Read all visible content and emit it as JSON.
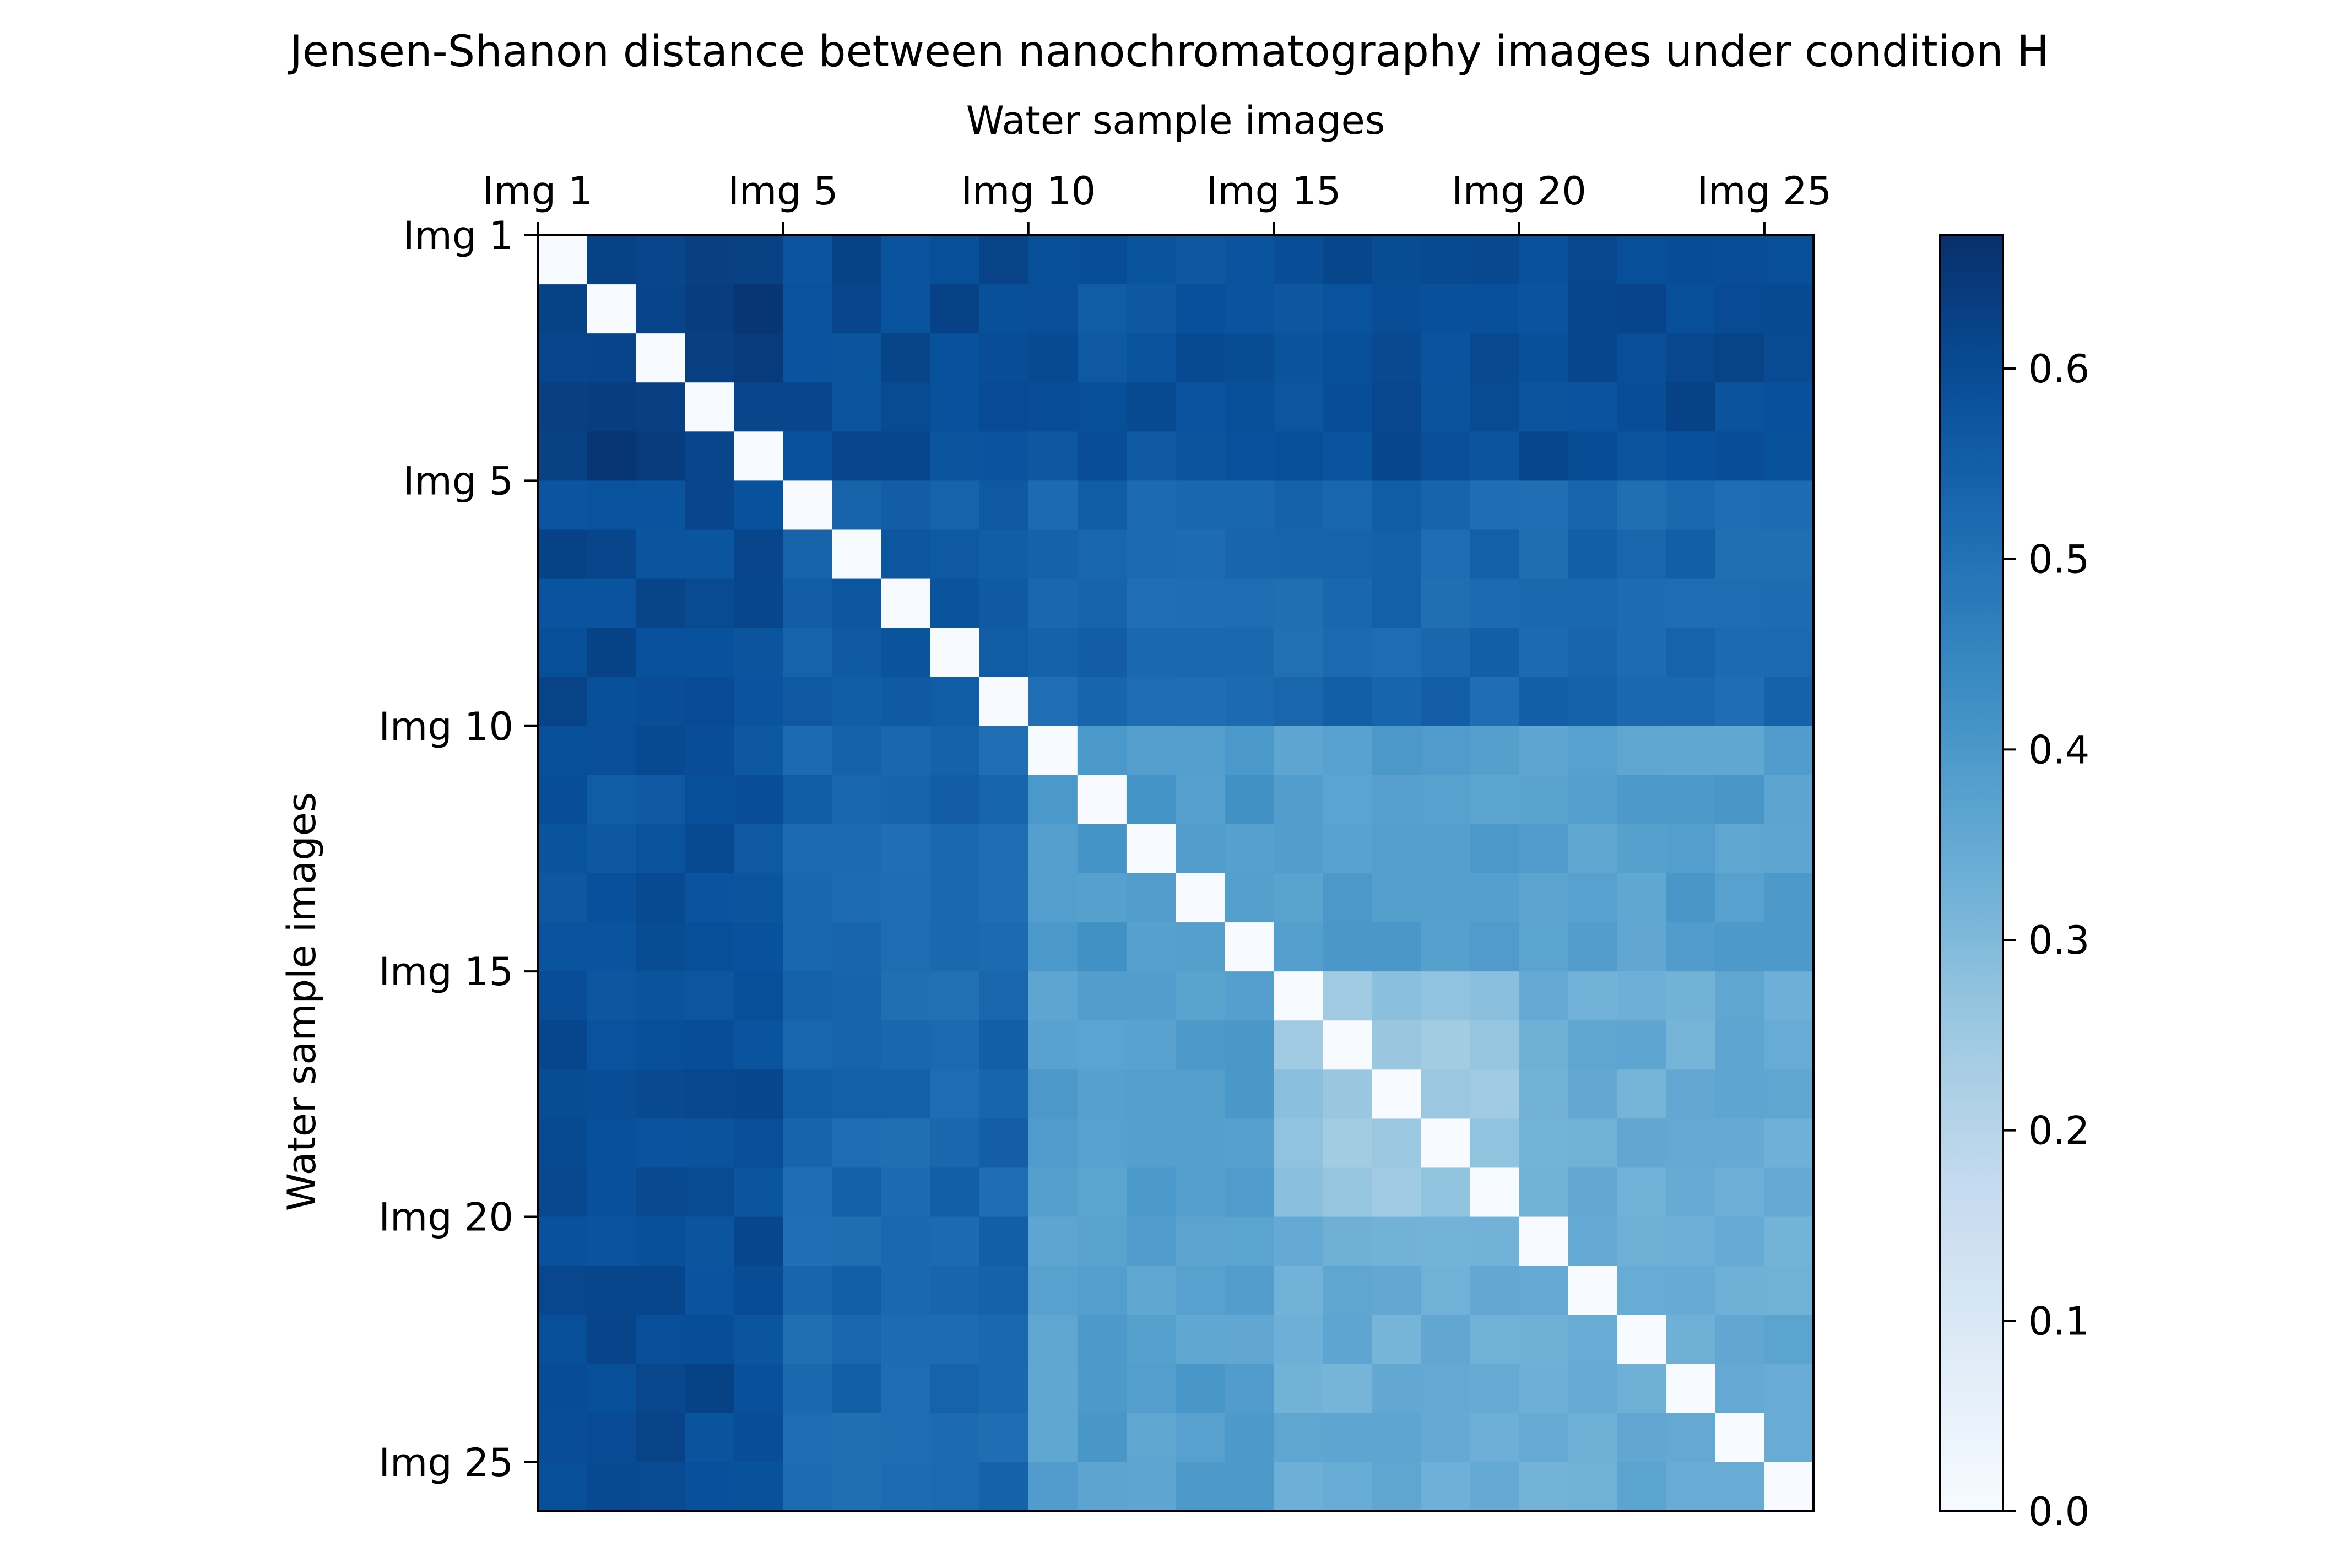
{
  "chart_data": {
    "type": "heatmap",
    "title": "Jensen-Shanon distance between nanochromatography images under condition  H",
    "xlabel": "Water sample images",
    "ylabel": "Water sample images",
    "x_tick_labels": [
      "Img 1",
      "Img 5",
      "Img 10",
      "Img 15",
      "Img 20",
      "Img 25"
    ],
    "y_tick_labels": [
      "Img 1",
      "Img 5",
      "Img 10",
      "Img 15",
      "Img 20",
      "Img 25"
    ],
    "tick_indices": [
      0,
      5,
      10,
      15,
      20,
      25
    ],
    "n": 26,
    "colormap": "Blues",
    "vmin": 0.0,
    "vmax": 0.67,
    "colorbar_ticks": [
      0.0,
      0.1,
      0.2,
      0.3,
      0.4,
      0.5,
      0.6
    ],
    "colorbar_tick_labels": [
      "0.0",
      "0.1",
      "0.2",
      "0.3",
      "0.4",
      "0.5",
      "0.6"
    ],
    "grid": false,
    "groups": [
      [
        0,
        4
      ],
      [
        5,
        9
      ],
      [
        10,
        14
      ],
      [
        15,
        19
      ],
      [
        20,
        25
      ]
    ],
    "group_distance": [
      [
        0.64,
        0.6,
        0.58,
        0.59,
        0.6
      ],
      [
        0.6,
        0.56,
        0.53,
        0.53,
        0.53
      ],
      [
        0.58,
        0.53,
        0.4,
        0.38,
        0.38
      ],
      [
        0.59,
        0.53,
        0.38,
        0.26,
        0.34
      ],
      [
        0.6,
        0.53,
        0.38,
        0.34,
        0.34
      ]
    ]
  }
}
